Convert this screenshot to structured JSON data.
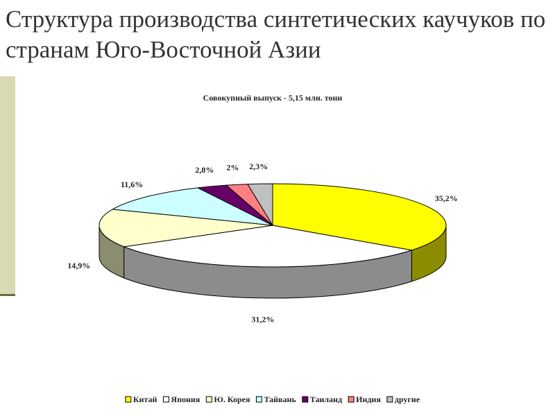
{
  "heading": "Структура производства синтетических каучуков по странам Юго-Восточной Азии",
  "chart_data": {
    "type": "pie",
    "title": "Совокупный выпуск - 5,15 млн. тонн",
    "categories": [
      "Китай",
      "Япония",
      "Ю. Корея",
      "Тайвань",
      "Таиланд",
      "Индия",
      "другие"
    ],
    "values": [
      35.2,
      31.2,
      14.9,
      11.6,
      2.8,
      2,
      2.3
    ],
    "value_labels": [
      "35,2%",
      "31,2%",
      "14,9%",
      "11,6%",
      "2,8%",
      "2%",
      "2,3%"
    ],
    "colors": [
      "#ffff00",
      "#ffffff",
      "#ffffcc",
      "#ccffff",
      "#660066",
      "#ff8080",
      "#c0c0c0"
    ],
    "legend": "bottom"
  }
}
